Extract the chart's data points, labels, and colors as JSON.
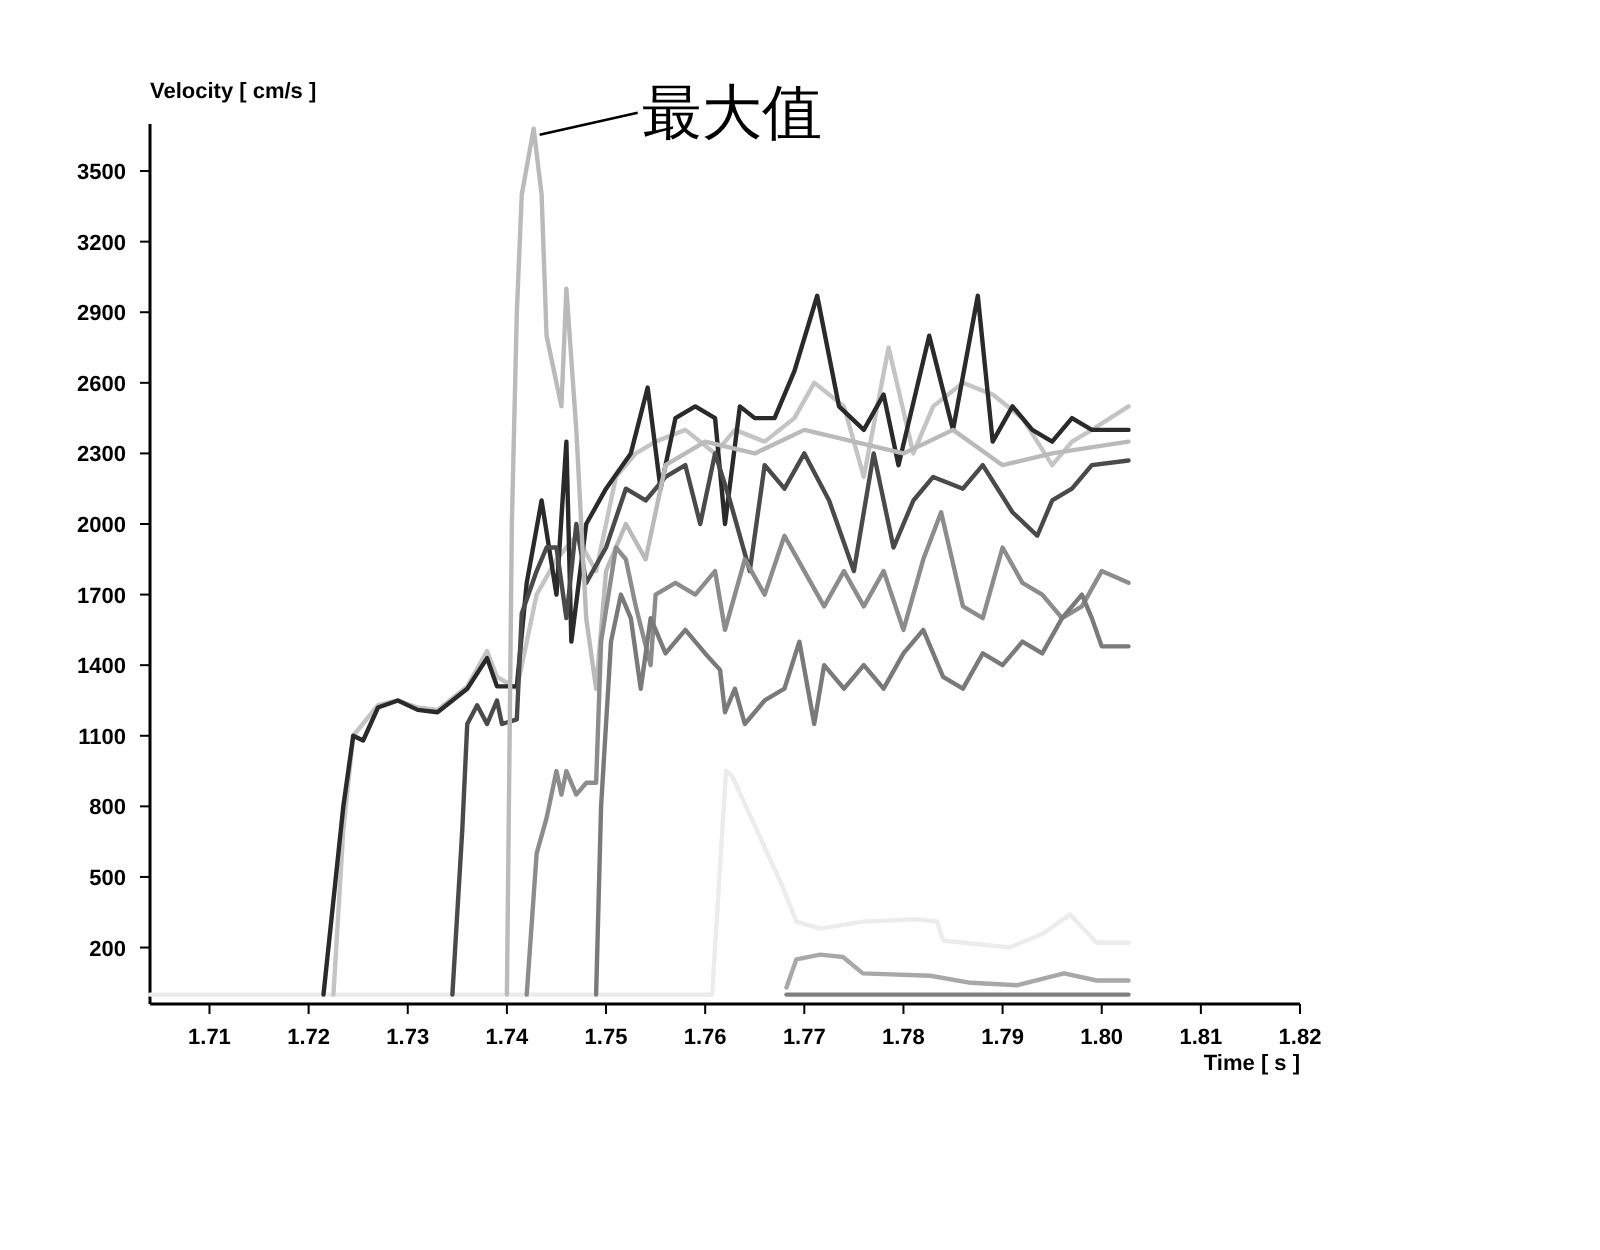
{
  "chart_data": {
    "type": "line",
    "xlabel": "Time [ s ]",
    "ylabel": "Velocity [ cm/s ]",
    "xlim": [
      1.704,
      1.82
    ],
    "ylim": [
      -40,
      3700
    ],
    "xticks": [
      1.71,
      1.72,
      1.73,
      1.74,
      1.75,
      1.76,
      1.77,
      1.78,
      1.79,
      {
        "value": 1.8,
        "label": "1.80"
      },
      1.81,
      1.82
    ],
    "yticks": [
      200,
      500,
      800,
      1100,
      1400,
      1700,
      2000,
      2300,
      2600,
      2900,
      3200,
      3500
    ],
    "annotations": [
      {
        "text": "最大值",
        "x": 1.7427,
        "y": 3680
      }
    ],
    "series": [
      {
        "color": "#ececec",
        "x": [
          1.704,
          1.7605,
          1.7607,
          1.7621,
          1.7627,
          1.7678,
          1.7692,
          1.7716,
          1.7759,
          1.7814,
          1.7834,
          1.784,
          1.7907,
          1.7941,
          1.7968,
          1.7995,
          1.8027
        ],
        "values": [
          0,
          0,
          0,
          950,
          930,
          460,
          310,
          280,
          310,
          320,
          310,
          230,
          200,
          260,
          340,
          220,
          220
        ]
      },
      {
        "color": "#a8a8a8",
        "x": [
          1.7682,
          1.7692,
          1.7716,
          1.7739,
          1.7759,
          1.7827,
          1.7868,
          1.7915,
          1.7962,
          1.7995,
          1.8027
        ],
        "values": [
          30,
          150,
          170,
          160,
          90,
          80,
          50,
          40,
          90,
          60,
          60
        ]
      },
      {
        "color": "#808080",
        "x": [
          1.7682,
          1.8027
        ],
        "values": [
          0,
          0
        ]
      },
      {
        "color": "#c4c4c4",
        "x": [
          1.7225,
          1.7235,
          1.7245,
          1.727,
          1.729,
          1.731,
          1.733,
          1.736,
          1.738,
          1.739,
          1.741,
          1.743,
          1.745,
          1.747,
          1.749,
          1.751,
          1.753,
          1.755,
          1.758,
          1.761,
          1.763,
          1.766,
          1.769,
          1.771,
          1.774,
          1.776,
          1.7785,
          1.781,
          1.783,
          1.786,
          1.789,
          1.792,
          1.795,
          1.797,
          1.799,
          1.8027
        ],
        "values": [
          0,
          700,
          1100,
          1230,
          1250,
          1220,
          1210,
          1310,
          1460,
          1350,
          1300,
          1700,
          1850,
          1950,
          1800,
          2200,
          2300,
          2350,
          2400,
          2300,
          2400,
          2350,
          2450,
          2600,
          2500,
          2200,
          2750,
          2300,
          2500,
          2600,
          2550,
          2450,
          2250,
          2350,
          2400,
          2500
        ]
      },
      {
        "color": "#2a2a2a",
        "x": [
          1.7215,
          1.7235,
          1.7245,
          1.7255,
          1.727,
          1.729,
          1.731,
          1.733,
          1.736,
          1.738,
          1.739,
          1.741,
          1.742,
          1.7435,
          1.745,
          1.746,
          1.7465,
          1.748,
          1.75,
          1.7525,
          1.7542,
          1.7555,
          1.757,
          1.759,
          1.761,
          1.762,
          1.7635,
          1.765,
          1.767,
          1.769,
          1.7713,
          1.7735,
          1.776,
          1.778,
          1.7795,
          1.7826,
          1.785,
          1.7875,
          1.789,
          1.791,
          1.793,
          1.795,
          1.797,
          1.799,
          1.8027
        ],
        "values": [
          0,
          800,
          1100,
          1080,
          1220,
          1250,
          1210,
          1200,
          1300,
          1430,
          1310,
          1310,
          1750,
          2100,
          1700,
          2350,
          1500,
          2000,
          2150,
          2300,
          2580,
          2150,
          2450,
          2500,
          2450,
          2000,
          2500,
          2450,
          2450,
          2650,
          2970,
          2500,
          2400,
          2550,
          2250,
          2800,
          2400,
          2970,
          2350,
          2500,
          2400,
          2350,
          2450,
          2400,
          2400
        ]
      },
      {
        "color": "#4a4a4a",
        "x": [
          1.7345,
          1.7355,
          1.736,
          1.737,
          1.738,
          1.739,
          1.7395,
          1.741,
          1.7415,
          1.743,
          1.744,
          1.745,
          1.746,
          1.747,
          1.748,
          1.75,
          1.752,
          1.754,
          1.756,
          1.758,
          1.7595,
          1.761,
          1.7625,
          1.7645,
          1.766,
          1.768,
          1.77,
          1.7725,
          1.775,
          1.777,
          1.779,
          1.781,
          1.783,
          1.786,
          1.788,
          1.791,
          1.7935,
          1.795,
          1.797,
          1.799,
          1.8027
        ],
        "values": [
          0,
          700,
          1150,
          1230,
          1150,
          1250,
          1150,
          1170,
          1620,
          1800,
          1900,
          1900,
          1600,
          2000,
          1750,
          1900,
          2150,
          2100,
          2200,
          2250,
          2000,
          2300,
          2100,
          1800,
          2250,
          2150,
          2300,
          2100,
          1800,
          2300,
          1900,
          2100,
          2200,
          2150,
          2250,
          2050,
          1950,
          2100,
          2150,
          2250,
          2270
        ]
      },
      {
        "color": "#bababa",
        "x": [
          1.74,
          1.7405,
          1.741,
          1.7415,
          1.7427,
          1.7435,
          1.744,
          1.745,
          1.7455,
          1.746,
          1.747,
          1.748,
          1.749,
          1.75,
          1.752,
          1.754,
          1.756,
          1.758,
          1.76,
          1.765,
          1.77,
          1.775,
          1.78,
          1.785,
          1.79,
          1.795,
          1.8027
        ],
        "values": [
          0,
          2000,
          2900,
          3400,
          3680,
          3400,
          2800,
          2600,
          2500,
          3000,
          2400,
          1600,
          1300,
          1800,
          2000,
          1850,
          2250,
          2300,
          2350,
          2300,
          2400,
          2350,
          2300,
          2400,
          2250,
          2300,
          2350
        ]
      },
      {
        "color": "#8c8c8c",
        "x": [
          1.742,
          1.743,
          1.744,
          1.745,
          1.7455,
          1.746,
          1.747,
          1.748,
          1.749,
          1.7495,
          1.751,
          1.752,
          1.753,
          1.7545,
          1.755,
          1.757,
          1.759,
          1.761,
          1.762,
          1.764,
          1.766,
          1.768,
          1.77,
          1.772,
          1.774,
          1.776,
          1.778,
          1.78,
          1.782,
          1.7838,
          1.786,
          1.788,
          1.79,
          1.792,
          1.794,
          1.796,
          1.798,
          1.8,
          1.8027
        ],
        "values": [
          0,
          600,
          750,
          950,
          850,
          950,
          850,
          900,
          900,
          1500,
          1900,
          1850,
          1650,
          1400,
          1700,
          1750,
          1700,
          1800,
          1550,
          1850,
          1700,
          1950,
          1800,
          1650,
          1800,
          1650,
          1800,
          1550,
          1850,
          2050,
          1650,
          1600,
          1900,
          1750,
          1700,
          1600,
          1650,
          1800,
          1750
        ]
      },
      {
        "color": "#7a7a7a",
        "x": [
          1.749,
          1.7495,
          1.7505,
          1.7515,
          1.7525,
          1.7535,
          1.7545,
          1.756,
          1.758,
          1.76,
          1.7615,
          1.762,
          1.763,
          1.764,
          1.766,
          1.768,
          1.7695,
          1.771,
          1.772,
          1.774,
          1.776,
          1.778,
          1.78,
          1.782,
          1.784,
          1.786,
          1.788,
          1.79,
          1.792,
          1.794,
          1.796,
          1.798,
          1.799,
          1.8,
          1.8027
        ],
        "values": [
          0,
          800,
          1500,
          1700,
          1600,
          1300,
          1600,
          1450,
          1550,
          1450,
          1380,
          1200,
          1300,
          1150,
          1250,
          1300,
          1500,
          1150,
          1400,
          1300,
          1400,
          1300,
          1450,
          1550,
          1350,
          1300,
          1450,
          1400,
          1500,
          1450,
          1600,
          1700,
          1600,
          1480,
          1480
        ]
      }
    ]
  }
}
